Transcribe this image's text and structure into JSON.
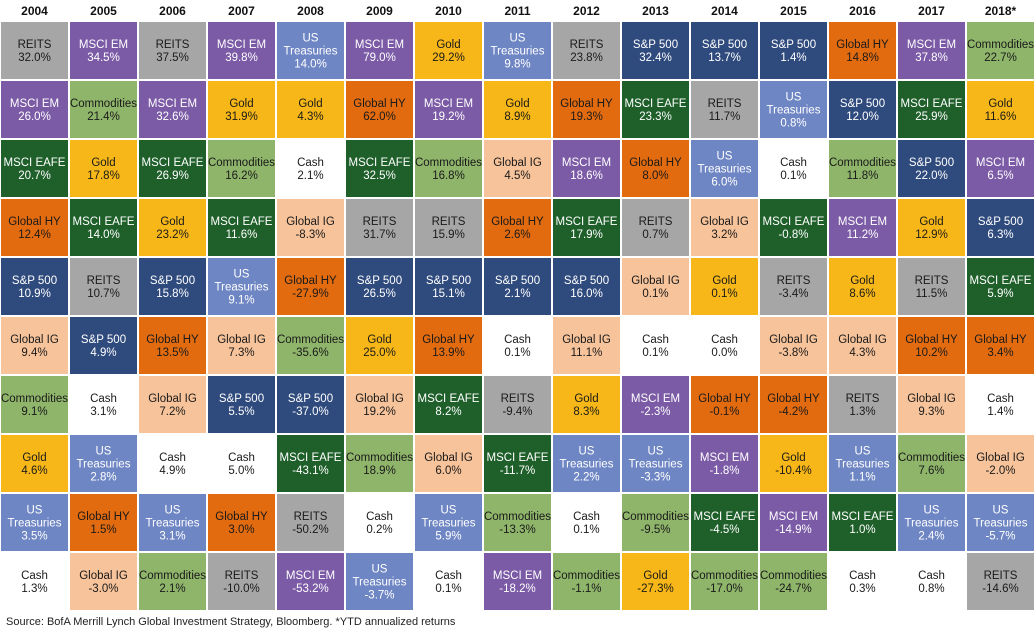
{
  "chart_data": {
    "type": "table",
    "years": [
      "2004",
      "2005",
      "2006",
      "2007",
      "2008",
      "2009",
      "2010",
      "2011",
      "2012",
      "2013",
      "2014",
      "2015",
      "2016",
      "2017",
      "2018*"
    ],
    "ranked_returns": [
      [
        [
          "REITS",
          "32.0%"
        ],
        [
          "MSCI EM",
          "26.0%"
        ],
        [
          "MSCI EAFE",
          "20.7%"
        ],
        [
          "Global HY",
          "12.4%"
        ],
        [
          "S&P 500",
          "10.9%"
        ],
        [
          "Global IG",
          "9.4%"
        ],
        [
          "Commodities",
          "9.1%"
        ],
        [
          "Gold",
          "4.6%"
        ],
        [
          "US Treasuries",
          "3.5%"
        ],
        [
          "Cash",
          "1.3%"
        ]
      ],
      [
        [
          "MSCI EM",
          "34.5%"
        ],
        [
          "Commodities",
          "21.4%"
        ],
        [
          "Gold",
          "17.8%"
        ],
        [
          "MSCI EAFE",
          "14.0%"
        ],
        [
          "REITS",
          "10.7%"
        ],
        [
          "S&P 500",
          "4.9%"
        ],
        [
          "Cash",
          "3.1%"
        ],
        [
          "US Treasuries",
          "2.8%"
        ],
        [
          "Global HY",
          "1.5%"
        ],
        [
          "Global IG",
          "-3.0%"
        ]
      ],
      [
        [
          "REITS",
          "37.5%"
        ],
        [
          "MSCI EM",
          "32.6%"
        ],
        [
          "MSCI EAFE",
          "26.9%"
        ],
        [
          "Gold",
          "23.2%"
        ],
        [
          "S&P 500",
          "15.8%"
        ],
        [
          "Global HY",
          "13.5%"
        ],
        [
          "Global IG",
          "7.2%"
        ],
        [
          "Cash",
          "4.9%"
        ],
        [
          "US Treasuries",
          "3.1%"
        ],
        [
          "Commodities",
          "2.1%"
        ]
      ],
      [
        [
          "MSCI EM",
          "39.8%"
        ],
        [
          "Gold",
          "31.9%"
        ],
        [
          "Commodities",
          "16.2%"
        ],
        [
          "MSCI EAFE",
          "11.6%"
        ],
        [
          "US Treasuries",
          "9.1%"
        ],
        [
          "Global IG",
          "7.3%"
        ],
        [
          "S&P 500",
          "5.5%"
        ],
        [
          "Cash",
          "5.0%"
        ],
        [
          "Global HY",
          "3.0%"
        ],
        [
          "REITS",
          "-10.0%"
        ]
      ],
      [
        [
          "US Treasuries",
          "14.0%"
        ],
        [
          "Gold",
          "4.3%"
        ],
        [
          "Cash",
          "2.1%"
        ],
        [
          "Global IG",
          "-8.3%"
        ],
        [
          "Global HY",
          "-27.9%"
        ],
        [
          "Commodities",
          "-35.6%"
        ],
        [
          "S&P 500",
          "-37.0%"
        ],
        [
          "MSCI EAFE",
          "-43.1%"
        ],
        [
          "REITS",
          "-50.2%"
        ],
        [
          "MSCI EM",
          "-53.2%"
        ]
      ],
      [
        [
          "MSCI EM",
          "79.0%"
        ],
        [
          "Global HY",
          "62.0%"
        ],
        [
          "MSCI EAFE",
          "32.5%"
        ],
        [
          "REITS",
          "31.7%"
        ],
        [
          "S&P 500",
          "26.5%"
        ],
        [
          "Gold",
          "25.0%"
        ],
        [
          "Global IG",
          "19.2%"
        ],
        [
          "Commodities",
          "18.9%"
        ],
        [
          "Cash",
          "0.2%"
        ],
        [
          "US Treasuries",
          "-3.7%"
        ]
      ],
      [
        [
          "Gold",
          "29.2%"
        ],
        [
          "MSCI EM",
          "19.2%"
        ],
        [
          "Commodities",
          "16.8%"
        ],
        [
          "REITS",
          "15.9%"
        ],
        [
          "S&P 500",
          "15.1%"
        ],
        [
          "Global HY",
          "13.9%"
        ],
        [
          "MSCI EAFE",
          "8.2%"
        ],
        [
          "Global IG",
          "6.0%"
        ],
        [
          "US Treasuries",
          "5.9%"
        ],
        [
          "Cash",
          "0.1%"
        ]
      ],
      [
        [
          "US Treasuries",
          "9.8%"
        ],
        [
          "Gold",
          "8.9%"
        ],
        [
          "Global IG",
          "4.5%"
        ],
        [
          "Global HY",
          "2.6%"
        ],
        [
          "S&P 500",
          "2.1%"
        ],
        [
          "Cash",
          "0.1%"
        ],
        [
          "REITS",
          "-9.4%"
        ],
        [
          "MSCI EAFE",
          "-11.7%"
        ],
        [
          "Commodities",
          "-13.3%"
        ],
        [
          "MSCI EM",
          "-18.2%"
        ]
      ],
      [
        [
          "REITS",
          "23.8%"
        ],
        [
          "Global HY",
          "19.3%"
        ],
        [
          "MSCI EM",
          "18.6%"
        ],
        [
          "MSCI EAFE",
          "17.9%"
        ],
        [
          "S&P 500",
          "16.0%"
        ],
        [
          "Global IG",
          "11.1%"
        ],
        [
          "Gold",
          "8.3%"
        ],
        [
          "US Treasuries",
          "2.2%"
        ],
        [
          "Cash",
          "0.1%"
        ],
        [
          "Commodities",
          "-1.1%"
        ]
      ],
      [
        [
          "S&P 500",
          "32.4%"
        ],
        [
          "MSCI EAFE",
          "23.3%"
        ],
        [
          "Global HY",
          "8.0%"
        ],
        [
          "REITS",
          "0.7%"
        ],
        [
          "Global IG",
          "0.1%"
        ],
        [
          "Cash",
          "0.1%"
        ],
        [
          "MSCI EM",
          "-2.3%"
        ],
        [
          "US Treasuries",
          "-3.3%"
        ],
        [
          "Commodities",
          "-9.5%"
        ],
        [
          "Gold",
          "-27.3%"
        ]
      ],
      [
        [
          "S&P 500",
          "13.7%"
        ],
        [
          "REITS",
          "11.7%"
        ],
        [
          "US Treasuries",
          "6.0%"
        ],
        [
          "Global IG",
          "3.2%"
        ],
        [
          "Gold",
          "0.1%"
        ],
        [
          "Cash",
          "0.0%"
        ],
        [
          "Global HY",
          "-0.1%"
        ],
        [
          "MSCI EM",
          "-1.8%"
        ],
        [
          "MSCI EAFE",
          "-4.5%"
        ],
        [
          "Commodities",
          "-17.0%"
        ]
      ],
      [
        [
          "S&P 500",
          "1.4%"
        ],
        [
          "US Treasuries",
          "0.8%"
        ],
        [
          "Cash",
          "0.1%"
        ],
        [
          "MSCI EAFE",
          "-0.8%"
        ],
        [
          "REITS",
          "-3.4%"
        ],
        [
          "Global IG",
          "-3.8%"
        ],
        [
          "Global HY",
          "-4.2%"
        ],
        [
          "Gold",
          "-10.4%"
        ],
        [
          "MSCI EM",
          "-14.9%"
        ],
        [
          "Commodities",
          "-24.7%"
        ]
      ],
      [
        [
          "Global HY",
          "14.8%"
        ],
        [
          "S&P 500",
          "12.0%"
        ],
        [
          "Commodities",
          "11.8%"
        ],
        [
          "MSCI EM",
          "11.2%"
        ],
        [
          "Gold",
          "8.6%"
        ],
        [
          "Global IG",
          "4.3%"
        ],
        [
          "REITS",
          "1.3%"
        ],
        [
          "US Treasuries",
          "1.1%"
        ],
        [
          "MSCI EAFE",
          "1.0%"
        ],
        [
          "Cash",
          "0.3%"
        ]
      ],
      [
        [
          "MSCI EM",
          "37.8%"
        ],
        [
          "MSCI EAFE",
          "25.9%"
        ],
        [
          "S&P 500",
          "22.0%"
        ],
        [
          "Gold",
          "12.9%"
        ],
        [
          "REITS",
          "11.5%"
        ],
        [
          "Global HY",
          "10.2%"
        ],
        [
          "Global IG",
          "9.3%"
        ],
        [
          "Commodities",
          "7.6%"
        ],
        [
          "US Treasuries",
          "2.4%"
        ],
        [
          "Cash",
          "0.8%"
        ]
      ],
      [
        [
          "Commodities",
          "22.7%"
        ],
        [
          "Gold",
          "11.6%"
        ],
        [
          "MSCI EM",
          "6.5%"
        ],
        [
          "S&P 500",
          "6.3%"
        ],
        [
          "MSCI EAFE",
          "5.9%"
        ],
        [
          "Global HY",
          "3.4%"
        ],
        [
          "Cash",
          "1.4%"
        ],
        [
          "Global IG",
          "-2.0%"
        ],
        [
          "US Treasuries",
          "-5.7%"
        ],
        [
          "REITS",
          "-14.6%"
        ]
      ]
    ],
    "asset_colors": {
      "REITS": "#a6a6a6",
      "MSCI EM": "#7b5aa6",
      "MSCI EAFE": "#1e5f2a",
      "Global HY": "#e26b10",
      "S&P 500": "#2f4a7d",
      "Global IG": "#f7c39a",
      "Commodities": "#8fb56b",
      "Gold": "#f7b718",
      "US Treasuries": "#6f86c4",
      "Cash": "#ffffff"
    },
    "asset_text_colors": {
      "REITS": "#1a1a1a",
      "MSCI EM": "#ffffff",
      "MSCI EAFE": "#ffffff",
      "Global HY": "#1a1a1a",
      "S&P 500": "#ffffff",
      "Global IG": "#1a1a1a",
      "Commodities": "#1a1a1a",
      "Gold": "#1a1a1a",
      "US Treasuries": "#ffffff",
      "Cash": "#1a1a1a"
    }
  },
  "source_note": "Source: BofA Merrill Lynch Global Investment Strategy, Bloomberg. *YTD annualized returns"
}
